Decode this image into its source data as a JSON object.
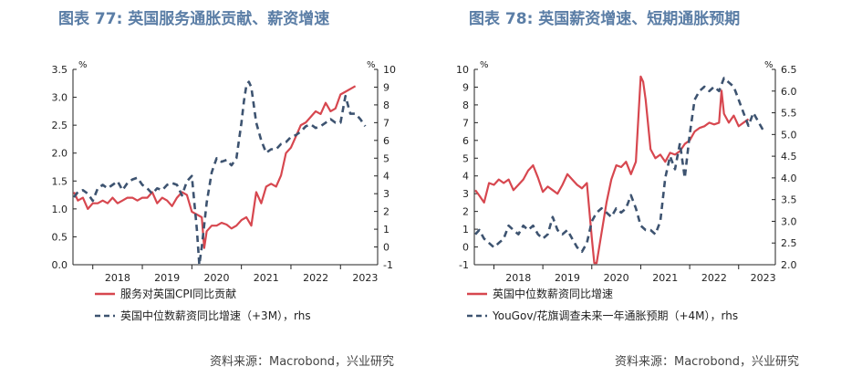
{
  "figures": [
    {
      "title": "图表 77: 英国服务通胀贡献、薪资增速",
      "source": "资料来源：Macrobond，兴业研究"
    },
    {
      "title": "图表 78: 英国薪资增速、短期通胀预期",
      "source": "资料来源：Macrobond，兴业研究"
    }
  ],
  "colors": {
    "series1": "#d7474f",
    "series2": "#3d5370",
    "title": "#5b7ea6"
  },
  "chart_data": [
    {
      "type": "line",
      "title": "图表 77: 英国服务通胀贡献、薪资增速",
      "left_axis": {
        "unit": "%",
        "range": [
          0,
          3.5
        ],
        "ticks": [
          "0.0",
          "0.5",
          "1.0",
          "1.5",
          "2.0",
          "2.5",
          "3.0",
          "3.5"
        ]
      },
      "right_axis": {
        "unit": "%",
        "range": [
          -1,
          10
        ],
        "ticks": [
          "-1",
          "0",
          "1",
          "2",
          "3",
          "4",
          "5",
          "6",
          "7",
          "8",
          "9",
          "10"
        ]
      },
      "x_axis": {
        "range": [
          2017.6,
          2023.75
        ],
        "ticks": [
          "2018",
          "2019",
          "2020",
          "2021",
          "2022",
          "2023"
        ]
      },
      "grid": false,
      "legend_position": "bottom-left",
      "series": [
        {
          "name": "服务对英国CPI同比贡献",
          "axis": "left",
          "style": "solid",
          "x": [
            2017.62,
            2017.7,
            2017.8,
            2017.9,
            2018.0,
            2018.1,
            2018.2,
            2018.3,
            2018.4,
            2018.5,
            2018.6,
            2018.7,
            2018.8,
            2018.9,
            2019.0,
            2019.1,
            2019.2,
            2019.3,
            2019.4,
            2019.5,
            2019.6,
            2019.7,
            2019.8,
            2019.9,
            2020.0,
            2020.1,
            2020.2,
            2020.25,
            2020.3,
            2020.4,
            2020.5,
            2020.6,
            2020.7,
            2020.8,
            2020.9,
            2021.0,
            2021.1,
            2021.2,
            2021.3,
            2021.4,
            2021.5,
            2021.6,
            2021.7,
            2021.8,
            2021.9,
            2022.0,
            2022.1,
            2022.2,
            2022.3,
            2022.4,
            2022.5,
            2022.6,
            2022.7,
            2022.8,
            2022.9,
            2023.0,
            2023.1,
            2023.2,
            2023.3
          ],
          "y": [
            1.3,
            1.15,
            1.2,
            1.0,
            1.1,
            1.1,
            1.15,
            1.1,
            1.2,
            1.1,
            1.15,
            1.2,
            1.2,
            1.15,
            1.2,
            1.2,
            1.3,
            1.1,
            1.2,
            1.15,
            1.05,
            1.2,
            1.3,
            1.25,
            0.95,
            0.9,
            0.85,
            0.3,
            0.6,
            0.7,
            0.7,
            0.75,
            0.72,
            0.65,
            0.7,
            0.8,
            0.85,
            0.7,
            1.3,
            1.1,
            1.4,
            1.45,
            1.4,
            1.6,
            2.0,
            2.1,
            2.3,
            2.5,
            2.55,
            2.65,
            2.75,
            2.7,
            2.9,
            2.75,
            2.8,
            3.05,
            3.1,
            3.15,
            3.2
          ]
        },
        {
          "name": "英国中位数薪资同比增速（+3M），rhs",
          "axis": "right",
          "style": "dashed",
          "x": [
            2017.62,
            2017.7,
            2017.8,
            2017.9,
            2018.0,
            2018.1,
            2018.2,
            2018.3,
            2018.4,
            2018.5,
            2018.6,
            2018.7,
            2018.8,
            2018.9,
            2019.0,
            2019.1,
            2019.2,
            2019.3,
            2019.4,
            2019.5,
            2019.6,
            2019.7,
            2019.8,
            2019.9,
            2020.0,
            2020.1,
            2020.15,
            2020.2,
            2020.3,
            2020.4,
            2020.5,
            2020.6,
            2020.7,
            2020.8,
            2020.9,
            2021.0,
            2021.05,
            2021.1,
            2021.15,
            2021.2,
            2021.3,
            2021.4,
            2021.5,
            2021.6,
            2021.7,
            2021.8,
            2021.9,
            2022.0,
            2022.1,
            2022.2,
            2022.3,
            2022.4,
            2022.5,
            2022.6,
            2022.7,
            2022.8,
            2022.9,
            2023.0,
            2023.1,
            2023.2,
            2023.3,
            2023.4,
            2023.5
          ],
          "y": [
            2.8,
            3.1,
            3.2,
            3.0,
            2.6,
            3.3,
            3.5,
            3.3,
            3.5,
            3.7,
            3.2,
            3.6,
            3.8,
            3.9,
            3.5,
            3.3,
            3.0,
            3.3,
            3.2,
            3.5,
            3.6,
            3.5,
            2.9,
            3.7,
            4.0,
            1.0,
            -1.0,
            0,
            2.5,
            4.2,
            5.0,
            4.8,
            4.9,
            4.6,
            5.0,
            7.0,
            8.2,
            9.1,
            9.3,
            9.0,
            7.0,
            6.0,
            5.3,
            5.5,
            5.5,
            5.8,
            5.9,
            6.2,
            6.3,
            6.5,
            6.8,
            6.9,
            6.7,
            6.8,
            7.0,
            7.2,
            7.0,
            7.0,
            8.5,
            7.5,
            7.5,
            7.2,
            6.8
          ]
        }
      ]
    },
    {
      "type": "line",
      "title": "图表 78: 英国薪资增速、短期通胀预期",
      "left_axis": {
        "unit": "%",
        "range": [
          -1,
          10
        ],
        "ticks": [
          "-1",
          "0",
          "1",
          "2",
          "3",
          "4",
          "5",
          "6",
          "7",
          "8",
          "9",
          "10"
        ]
      },
      "right_axis": {
        "unit": "%",
        "range": [
          2.0,
          6.5
        ],
        "ticks": [
          "2.0",
          "2.5",
          "3.0",
          "3.5",
          "4.0",
          "4.5",
          "5.0",
          "5.5",
          "6.0",
          "6.5"
        ]
      },
      "x_axis": {
        "range": [
          2017.6,
          2023.75
        ],
        "ticks": [
          "2018",
          "2019",
          "2020",
          "2021",
          "2022",
          "2023"
        ]
      },
      "grid": false,
      "legend_position": "bottom-left",
      "series": [
        {
          "name": "英国中位数薪资同比增速",
          "axis": "left",
          "style": "solid",
          "x": [
            2017.62,
            2017.7,
            2017.8,
            2017.9,
            2018.0,
            2018.1,
            2018.2,
            2018.3,
            2018.4,
            2018.5,
            2018.6,
            2018.7,
            2018.8,
            2018.9,
            2019.0,
            2019.1,
            2019.2,
            2019.3,
            2019.4,
            2019.5,
            2019.6,
            2019.7,
            2019.8,
            2019.9,
            2020.0,
            2020.05,
            2020.1,
            2020.2,
            2020.3,
            2020.4,
            2020.5,
            2020.6,
            2020.7,
            2020.8,
            2020.9,
            2021.0,
            2021.05,
            2021.1,
            2021.2,
            2021.3,
            2021.4,
            2021.5,
            2021.6,
            2021.7,
            2021.8,
            2021.9,
            2022.0,
            2022.1,
            2022.2,
            2022.3,
            2022.4,
            2022.5,
            2022.6,
            2022.65,
            2022.7,
            2022.8,
            2022.9,
            2023.0,
            2023.1,
            2023.2
          ],
          "y": [
            3.2,
            2.9,
            2.5,
            3.6,
            3.5,
            3.8,
            3.6,
            3.8,
            3.2,
            3.5,
            3.8,
            4.3,
            4.6,
            3.9,
            3.1,
            3.4,
            3.2,
            3.0,
            3.5,
            4.1,
            3.8,
            3.5,
            3.3,
            3.6,
            0.5,
            -0.9,
            -0.9,
            0.8,
            2.5,
            3.8,
            4.6,
            4.5,
            4.8,
            4.1,
            4.8,
            9.6,
            9.3,
            8.3,
            5.5,
            5.0,
            5.2,
            4.8,
            5.3,
            5.2,
            5.4,
            5.8,
            6.0,
            6.5,
            6.7,
            6.8,
            7.0,
            6.9,
            7.0,
            8.8,
            7.5,
            7.0,
            7.4,
            6.8,
            7.0,
            7.2
          ]
        },
        {
          "name": "YouGov/花旗调查未来一年通胀预期（+4M），rhs",
          "axis": "right",
          "style": "dashed",
          "x": [
            2017.62,
            2017.7,
            2017.8,
            2017.9,
            2018.0,
            2018.1,
            2018.2,
            2018.3,
            2018.4,
            2018.5,
            2018.6,
            2018.7,
            2018.8,
            2018.9,
            2019.0,
            2019.1,
            2019.2,
            2019.3,
            2019.4,
            2019.5,
            2019.6,
            2019.7,
            2019.8,
            2019.9,
            2020.0,
            2020.1,
            2020.2,
            2020.3,
            2020.4,
            2020.5,
            2020.6,
            2020.7,
            2020.8,
            2020.9,
            2021.0,
            2021.1,
            2021.2,
            2021.3,
            2021.4,
            2021.5,
            2021.6,
            2021.7,
            2021.8,
            2021.9,
            2022.0,
            2022.1,
            2022.2,
            2022.3,
            2022.4,
            2022.5,
            2022.6,
            2022.7,
            2022.8,
            2022.9,
            2023.0,
            2023.1,
            2023.2,
            2023.3,
            2023.4,
            2023.5
          ],
          "y": [
            2.7,
            2.8,
            2.6,
            2.5,
            2.4,
            2.5,
            2.6,
            2.9,
            2.8,
            2.7,
            2.9,
            2.8,
            2.9,
            2.7,
            2.6,
            2.7,
            3.1,
            2.8,
            2.7,
            2.8,
            2.6,
            2.4,
            2.3,
            2.5,
            3.0,
            3.2,
            3.3,
            3.2,
            3.1,
            3.3,
            3.2,
            3.3,
            3.6,
            3.3,
            2.9,
            2.8,
            2.8,
            2.7,
            3.0,
            4.0,
            4.5,
            4.2,
            4.8,
            4.0,
            5.0,
            5.8,
            6.0,
            6.1,
            6.0,
            6.1,
            6.0,
            6.3,
            6.2,
            6.1,
            5.8,
            5.5,
            5.2,
            5.5,
            5.3,
            5.1
          ]
        }
      ]
    }
  ]
}
